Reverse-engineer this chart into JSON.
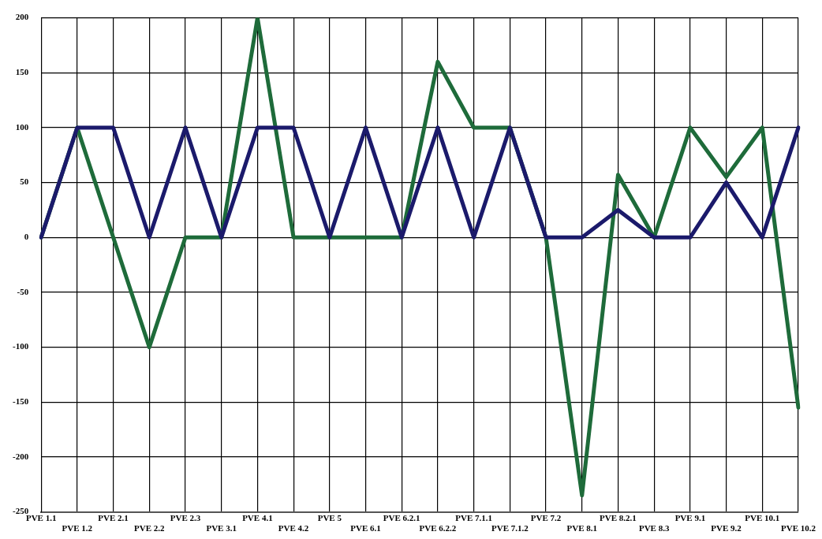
{
  "chart_data": {
    "type": "line",
    "categories": [
      "PVE 1.1",
      "PVE 1.2",
      "PVE 2.1",
      "PVE 2.2",
      "PVE 2.3",
      "PVE 3.1",
      "PVE 4.1",
      "PVE 4.2",
      "PVE 5",
      "PVE 6.1",
      "PVE 6.2.1",
      "PVE 6.2.2",
      "PVE 7.1.1",
      "PVE 7.1.2",
      "PVE 7.2",
      "PVE 8.1",
      "PVE 8.2.1",
      "PVE 8.3",
      "PVE 9.1",
      "PVE 9.2",
      "PVE 10.1",
      "PVE 10.2"
    ],
    "series": [
      {
        "color": "#1b1a6b",
        "values": [
          0,
          100,
          100,
          0,
          100,
          0,
          100,
          100,
          0,
          100,
          0,
          100,
          0,
          100,
          0,
          0,
          25,
          0,
          0,
          50,
          0,
          100
        ]
      },
      {
        "color": "#1e6b3a",
        "values": [
          0,
          100,
          0,
          -100,
          0,
          0,
          200,
          0,
          0,
          0,
          0,
          160,
          100,
          100,
          0,
          -235,
          57,
          0,
          100,
          55,
          100,
          -155
        ]
      }
    ],
    "ylim": [
      -250,
      200
    ],
    "yticks": [
      -250,
      -200,
      -150,
      -100,
      -50,
      0,
      50,
      100,
      150,
      200
    ],
    "grid": true,
    "legend": false,
    "marker": "none",
    "line_style": "solid"
  }
}
